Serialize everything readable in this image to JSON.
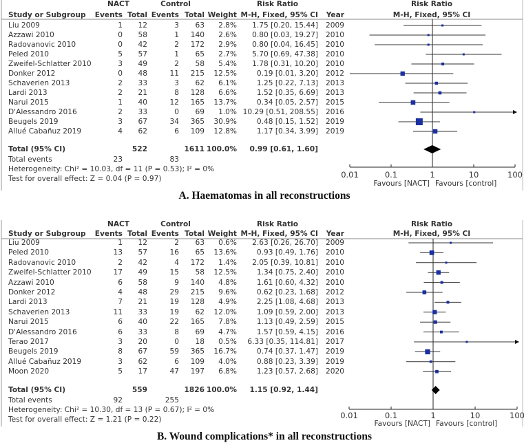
{
  "chart_data": [
    {
      "type": "forest",
      "caption": "A. Haematomas in all reconstructions",
      "headers": {
        "study": "Study or Subgroup",
        "group1": "NACT",
        "group2": "Control",
        "events": "Events",
        "total": "Total",
        "weight": "Weight",
        "rr_title": "Risk Ratio",
        "rr_method": "M-H, Fixed, 95% CI",
        "year": "Year"
      },
      "rows": [
        {
          "study": "Liu 2009",
          "e1": "1",
          "n1": "12",
          "e2": "3",
          "n2": "63",
          "weight": "2.8%",
          "w": 2.8,
          "rr": 1.75,
          "lo": 0.2,
          "hi": 15.44,
          "rr_text": "1.75 [0.20, 15.44]",
          "year": "2009"
        },
        {
          "study": "Azzawi 2010",
          "e1": "0",
          "n1": "58",
          "e2": "1",
          "n2": "140",
          "weight": "2.6%",
          "w": 2.6,
          "rr": 0.8,
          "lo": 0.03,
          "hi": 19.27,
          "rr_text": "0.80 [0.03, 19.27]",
          "year": "2010"
        },
        {
          "study": "Radovanovic 2010",
          "e1": "0",
          "n1": "42",
          "e2": "2",
          "n2": "172",
          "weight": "2.9%",
          "w": 2.9,
          "rr": 0.8,
          "lo": 0.04,
          "hi": 16.45,
          "rr_text": "0.80 [0.04, 16.45]",
          "year": "2010"
        },
        {
          "study": "Peled 2010",
          "e1": "5",
          "n1": "57",
          "e2": "1",
          "n2": "65",
          "weight": "2.7%",
          "w": 2.7,
          "rr": 5.7,
          "lo": 0.69,
          "hi": 47.38,
          "rr_text": "5.70 [0.69, 47.38]",
          "year": "2010"
        },
        {
          "study": "Zweifel-Schlatter 2010",
          "e1": "3",
          "n1": "49",
          "e2": "2",
          "n2": "58",
          "weight": "5.4%",
          "w": 5.4,
          "rr": 1.78,
          "lo": 0.31,
          "hi": 10.2,
          "rr_text": "1.78 [0.31, 10.20]",
          "year": "2010"
        },
        {
          "study": "Donker 2012",
          "e1": "0",
          "n1": "48",
          "e2": "11",
          "n2": "215",
          "weight": "12.5%",
          "w": 12.5,
          "rr": 0.19,
          "lo": 0.01,
          "hi": 3.2,
          "rr_text": "0.19 [0.01, 3.20]",
          "year": "2012"
        },
        {
          "study": "Schaverien 2013",
          "e1": "2",
          "n1": "33",
          "e2": "3",
          "n2": "62",
          "weight": "6.1%",
          "w": 6.1,
          "rr": 1.25,
          "lo": 0.22,
          "hi": 7.13,
          "rr_text": "1.25 [0.22, 7.13]",
          "year": "2013"
        },
        {
          "study": "Lardi 2013",
          "e1": "2",
          "n1": "21",
          "e2": "8",
          "n2": "128",
          "weight": "6.6%",
          "w": 6.6,
          "rr": 1.52,
          "lo": 0.35,
          "hi": 6.69,
          "rr_text": "1.52 [0.35, 6.69]",
          "year": "2013"
        },
        {
          "study": "Narui 2015",
          "e1": "1",
          "n1": "40",
          "e2": "12",
          "n2": "165",
          "weight": "13.7%",
          "w": 13.7,
          "rr": 0.34,
          "lo": 0.05,
          "hi": 2.57,
          "rr_text": "0.34 [0.05, 2.57]",
          "year": "2015"
        },
        {
          "study": "D'Alessandro 2016",
          "e1": "2",
          "n1": "33",
          "e2": "0",
          "n2": "69",
          "weight": "1.0%",
          "w": 1.0,
          "rr": 10.29,
          "lo": 0.51,
          "hi": 208.55,
          "rr_text": "10.29 [0.51, 208.55]",
          "year": "2016"
        },
        {
          "study": "Beugels 2019",
          "e1": "3",
          "n1": "67",
          "e2": "34",
          "n2": "365",
          "weight": "30.9%",
          "w": 30.9,
          "rr": 0.48,
          "lo": 0.15,
          "hi": 1.52,
          "rr_text": "0.48 [0.15, 1.52]",
          "year": "2019"
        },
        {
          "study": "Allué Cabañuz 2019",
          "e1": "4",
          "n1": "62",
          "e2": "6",
          "n2": "109",
          "weight": "12.8%",
          "w": 12.8,
          "rr": 1.17,
          "lo": 0.34,
          "hi": 3.99,
          "rr_text": "1.17 [0.34, 3.99]",
          "year": "2019"
        }
      ],
      "total": {
        "label": "Total (95% CI)",
        "n1": "522",
        "n2": "1611",
        "weight": "100.0%",
        "rr": 0.99,
        "lo": 0.61,
        "hi": 1.6,
        "rr_text": "0.99 [0.61, 1.60]"
      },
      "total_events": {
        "label": "Total events",
        "e1": "23",
        "e2": "83"
      },
      "heterogeneity": "Heterogeneity: Chi² = 10.03, df = 11 (P = 0.53); I² = 0%",
      "overall_effect": "Test for overall effect: Z = 0.04 (P = 0.97)",
      "x_scale": "log",
      "xlim": [
        0.01,
        100
      ],
      "x_ticks": [
        "0.01",
        "0.1",
        "1",
        "10",
        "100"
      ],
      "x_tick_values": [
        0.01,
        0.1,
        1,
        10,
        100
      ],
      "favours_left": "Favours [NACT]",
      "favours_right": "Favours [control]"
    },
    {
      "type": "forest",
      "caption": "B. Wound complications* in all reconstructions",
      "headers": {
        "study": "Study or Subgroup",
        "group1": "NACT",
        "group2": "Control",
        "events": "Events",
        "total": "Total",
        "weight": "Weight",
        "rr_title": "Risk Ratio",
        "rr_method": "M-H, Fixed, 95% CI",
        "year": "Year"
      },
      "rows": [
        {
          "study": "Liu 2009",
          "e1": "1",
          "n1": "12",
          "e2": "2",
          "n2": "63",
          "weight": "0.6%",
          "w": 0.6,
          "rr": 2.63,
          "lo": 0.26,
          "hi": 26.7,
          "rr_text": "2.63 [0.26, 26.70]",
          "year": "2009"
        },
        {
          "study": "Peled 2010",
          "e1": "13",
          "n1": "57",
          "e2": "16",
          "n2": "65",
          "weight": "13.6%",
          "w": 13.6,
          "rr": 0.93,
          "lo": 0.49,
          "hi": 1.76,
          "rr_text": "0.93 [0.49, 1.76]",
          "year": "2010"
        },
        {
          "study": "Radovanovic 2010",
          "e1": "2",
          "n1": "42",
          "e2": "4",
          "n2": "172",
          "weight": "1.4%",
          "w": 1.4,
          "rr": 2.05,
          "lo": 0.39,
          "hi": 10.81,
          "rr_text": "2.05 [0.39, 10.81]",
          "year": "2010"
        },
        {
          "study": "Zweifel-Schlatter 2010",
          "e1": "17",
          "n1": "49",
          "e2": "15",
          "n2": "58",
          "weight": "12.5%",
          "w": 12.5,
          "rr": 1.34,
          "lo": 0.75,
          "hi": 2.4,
          "rr_text": "1.34 [0.75, 2.40]",
          "year": "2010"
        },
        {
          "study": "Azzawi 2010",
          "e1": "6",
          "n1": "58",
          "e2": "9",
          "n2": "140",
          "weight": "4.8%",
          "w": 4.8,
          "rr": 1.61,
          "lo": 0.6,
          "hi": 4.32,
          "rr_text": "1.61 [0.60, 4.32]",
          "year": "2010"
        },
        {
          "study": "Donker 2012",
          "e1": "4",
          "n1": "48",
          "e2": "29",
          "n2": "215",
          "weight": "9.6%",
          "w": 9.6,
          "rr": 0.62,
          "lo": 0.23,
          "hi": 1.68,
          "rr_text": "0.62 [0.23, 1.68]",
          "year": "2012"
        },
        {
          "study": "Lardi 2013",
          "e1": "7",
          "n1": "21",
          "e2": "19",
          "n2": "128",
          "weight": "4.9%",
          "w": 4.9,
          "rr": 2.25,
          "lo": 1.08,
          "hi": 4.68,
          "rr_text": "2.25 [1.08, 4.68]",
          "year": "2013"
        },
        {
          "study": "Schaverien 2013",
          "e1": "11",
          "n1": "33",
          "e2": "19",
          "n2": "62",
          "weight": "12.0%",
          "w": 12.0,
          "rr": 1.09,
          "lo": 0.59,
          "hi": 2.0,
          "rr_text": "1.09 [0.59, 2.00]",
          "year": "2013"
        },
        {
          "study": "Narui 2015",
          "e1": "6",
          "n1": "40",
          "e2": "22",
          "n2": "165",
          "weight": "7.8%",
          "w": 7.8,
          "rr": 1.13,
          "lo": 0.49,
          "hi": 2.59,
          "rr_text": "1.13 [0.49, 2.59]",
          "year": "2015"
        },
        {
          "study": "D'Alessandro 2016",
          "e1": "6",
          "n1": "33",
          "e2": "8",
          "n2": "69",
          "weight": "4.7%",
          "w": 4.7,
          "rr": 1.57,
          "lo": 0.59,
          "hi": 4.15,
          "rr_text": "1.57 [0.59, 4.15]",
          "year": "2016"
        },
        {
          "study": "Terao 2017",
          "e1": "3",
          "n1": "20",
          "e2": "0",
          "n2": "18",
          "weight": "0.5%",
          "w": 0.5,
          "rr": 6.33,
          "lo": 0.35,
          "hi": 114.81,
          "rr_text": "6.33 [0.35, 114.81]",
          "year": "2017"
        },
        {
          "study": "Beugels 2019",
          "e1": "8",
          "n1": "67",
          "e2": "59",
          "n2": "365",
          "weight": "16.7%",
          "w": 16.7,
          "rr": 0.74,
          "lo": 0.37,
          "hi": 1.47,
          "rr_text": "0.74 [0.37, 1.47]",
          "year": "2019"
        },
        {
          "study": "Allué Cabañuz 2019",
          "e1": "3",
          "n1": "62",
          "e2": "6",
          "n2": "109",
          "weight": "4.0%",
          "w": 4.0,
          "rr": 0.88,
          "lo": 0.23,
          "hi": 3.39,
          "rr_text": "0.88 [0.23, 3.39]",
          "year": "2019"
        },
        {
          "study": "Moon 2020",
          "e1": "5",
          "n1": "17",
          "e2": "47",
          "n2": "197",
          "weight": "6.8%",
          "w": 6.8,
          "rr": 1.23,
          "lo": 0.57,
          "hi": 2.68,
          "rr_text": "1.23 [0.57, 2.68]",
          "year": "2020"
        }
      ],
      "total": {
        "label": "Total (95% CI)",
        "n1": "559",
        "n2": "1826",
        "weight": "100.0%",
        "rr": 1.15,
        "lo": 0.92,
        "hi": 1.44,
        "rr_text": "1.15 [0.92, 1.44]"
      },
      "total_events": {
        "label": "Total events",
        "e1": "92",
        "e2": "255"
      },
      "heterogeneity": "Heterogeneity: Chi² = 10.30, df = 13 (P = 0.67); I² = 0%",
      "overall_effect": "Test for overall effect: Z = 1.21 (P = 0.22)",
      "x_scale": "log",
      "xlim": [
        0.01,
        100
      ],
      "x_ticks": [
        "0.01",
        "0.1",
        "1",
        "10",
        "100"
      ],
      "x_tick_values": [
        0.01,
        0.1,
        1,
        10,
        100
      ],
      "favours_left": "Favours [NACT]",
      "favours_right": "Favours [control]"
    }
  ],
  "colors": {
    "marker": "#1a2fa0",
    "line": "#333333",
    "diamond": "#000000",
    "rule": "#888888"
  }
}
